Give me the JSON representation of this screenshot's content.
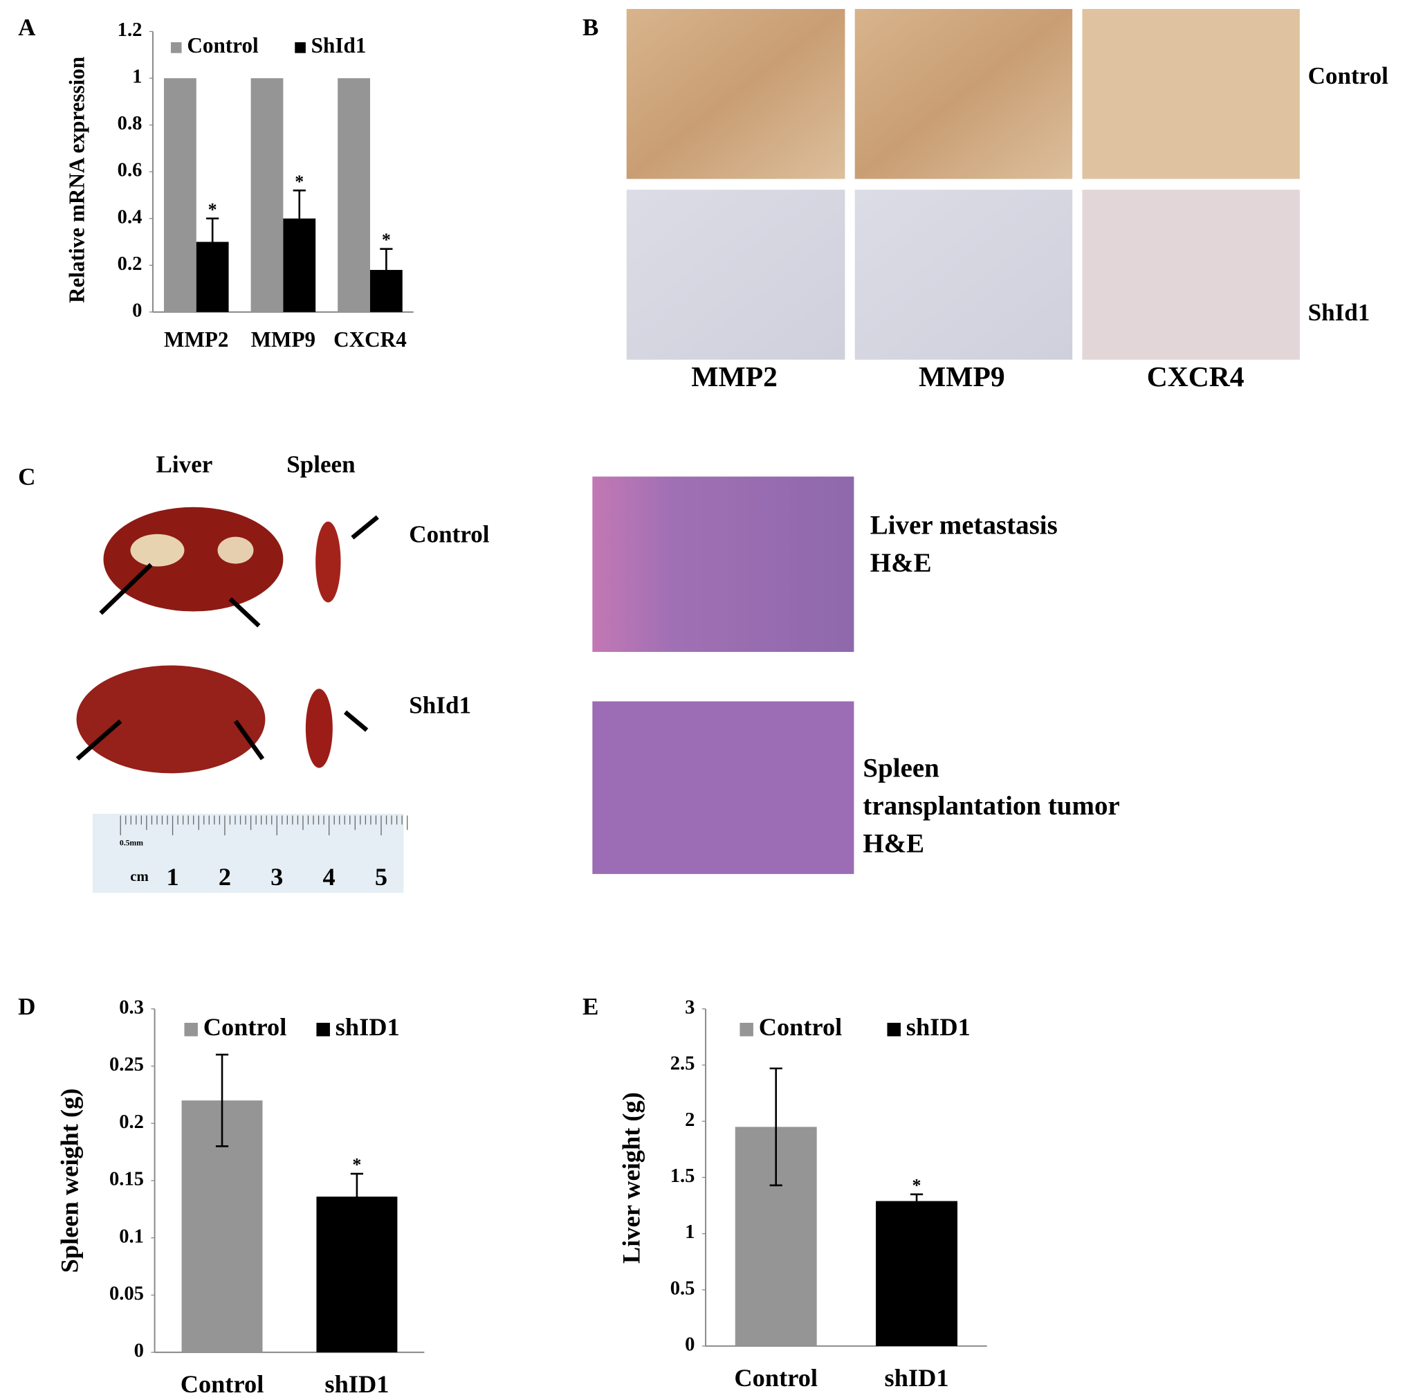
{
  "panel_labels": [
    "A",
    "B",
    "C",
    "D",
    "E"
  ],
  "chart_data": [
    {
      "type": "bar",
      "ylabel": "Relative mRNA expression",
      "categories": [
        "MMP2",
        "MMP9",
        "CXCR4"
      ],
      "series": [
        {
          "name": "Control",
          "color": "#959595",
          "values": [
            1,
            1,
            1
          ]
        },
        {
          "name": "ShId1",
          "color": "#000000",
          "values": [
            0.3,
            0.4,
            0.18
          ],
          "errors": [
            0.1,
            0.12,
            0.09
          ],
          "significance": [
            "*",
            "*",
            "*"
          ]
        }
      ],
      "error_direction": "up",
      "ylim": [
        0,
        1.2
      ],
      "yticks": [
        0,
        0.2,
        0.4,
        0.6,
        0.8,
        1,
        1.2
      ],
      "grid": false,
      "legend": "top"
    },
    {
      "type": "bar",
      "ylabel": "Spleen weight (g)",
      "categories": [
        "Control",
        "shID1"
      ],
      "values": [
        0.22,
        0.136
      ],
      "errors": [
        0.04,
        0.02
      ],
      "significance": [
        null,
        "*"
      ],
      "colors": [
        "#959595",
        "#000000"
      ],
      "legend_names": [
        "Control",
        "shID1"
      ],
      "error_direction": "both",
      "ylim": [
        0,
        0.3
      ],
      "yticks": [
        0,
        0.05,
        0.1,
        0.15,
        0.2,
        0.25,
        0.3
      ],
      "grid": false,
      "legend": "top"
    },
    {
      "type": "bar",
      "ylabel": "Liver weight (g)",
      "categories": [
        "Control",
        "shID1"
      ],
      "values": [
        1.95,
        1.29
      ],
      "errors": [
        0.52,
        0.06
      ],
      "significance": [
        null,
        "*"
      ],
      "colors": [
        "#959595",
        "#000000"
      ],
      "legend_names": [
        "Control",
        "shID1"
      ],
      "error_direction": "both",
      "ylim": [
        0,
        3
      ],
      "yticks": [
        0,
        0.5,
        1,
        1.5,
        2,
        2.5,
        3
      ],
      "grid": false,
      "legend": "top"
    }
  ],
  "panel_b": {
    "row_labels": [
      "Control",
      "ShId1"
    ],
    "column_labels": [
      "MMP2",
      "MMP9",
      "CXCR4"
    ]
  },
  "panel_c": {
    "column_labels": [
      "Liver",
      "Spleen"
    ],
    "row_labels": [
      "Control",
      "ShId1"
    ],
    "ruler": {
      "unit": "cm",
      "scale_note": "0.5mm",
      "numbers": [
        1,
        2,
        3,
        4,
        5
      ]
    },
    "captions": [
      [
        "Liver metastasis",
        "H&E"
      ],
      [
        "Spleen",
        "transplantation tumor",
        "H&E"
      ]
    ]
  }
}
